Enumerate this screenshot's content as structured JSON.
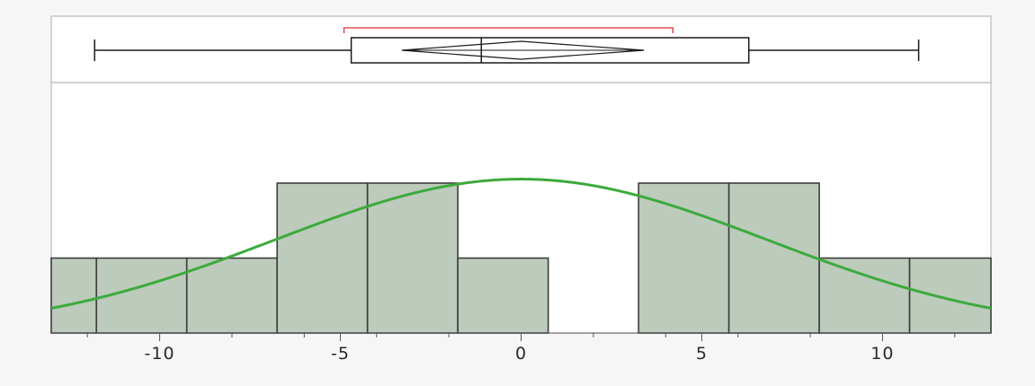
{
  "chart_data": {
    "type": "histogram",
    "title": "",
    "xlabel": "",
    "ylabel": "",
    "xlim": [
      -13,
      13
    ],
    "x_ticks": [
      -10,
      -5,
      0,
      5,
      10
    ],
    "x_tick_labels": [
      "-10",
      "-5",
      "0",
      "5",
      "10"
    ],
    "bin_edges": [
      -13,
      -11.75,
      -9.25,
      -6.75,
      -4.25,
      -1.75,
      0.75,
      3.25,
      5.75,
      8.25,
      10.75,
      13
    ],
    "counts": [
      1,
      1,
      1,
      2,
      2,
      1,
      0,
      2,
      2,
      1,
      1
    ],
    "normal_curve": {
      "mean": 0,
      "sd": 6.8
    },
    "box_plot": {
      "min": -11.8,
      "q1": -4.7,
      "median": -1.1,
      "q3": 6.3,
      "max": 11.0,
      "mean_diamond": {
        "center": 0,
        "lower": -3.3,
        "upper": 3.4
      },
      "shortest_half": [
        -4.9,
        4.2
      ]
    },
    "colors": {
      "bar_fill": "#bccbbb",
      "bar_edge": "#3d3d3d",
      "curve": "#3daa3d",
      "shortest_half": "#e0505a",
      "frame": "#b9b9b9"
    },
    "grid": false
  }
}
